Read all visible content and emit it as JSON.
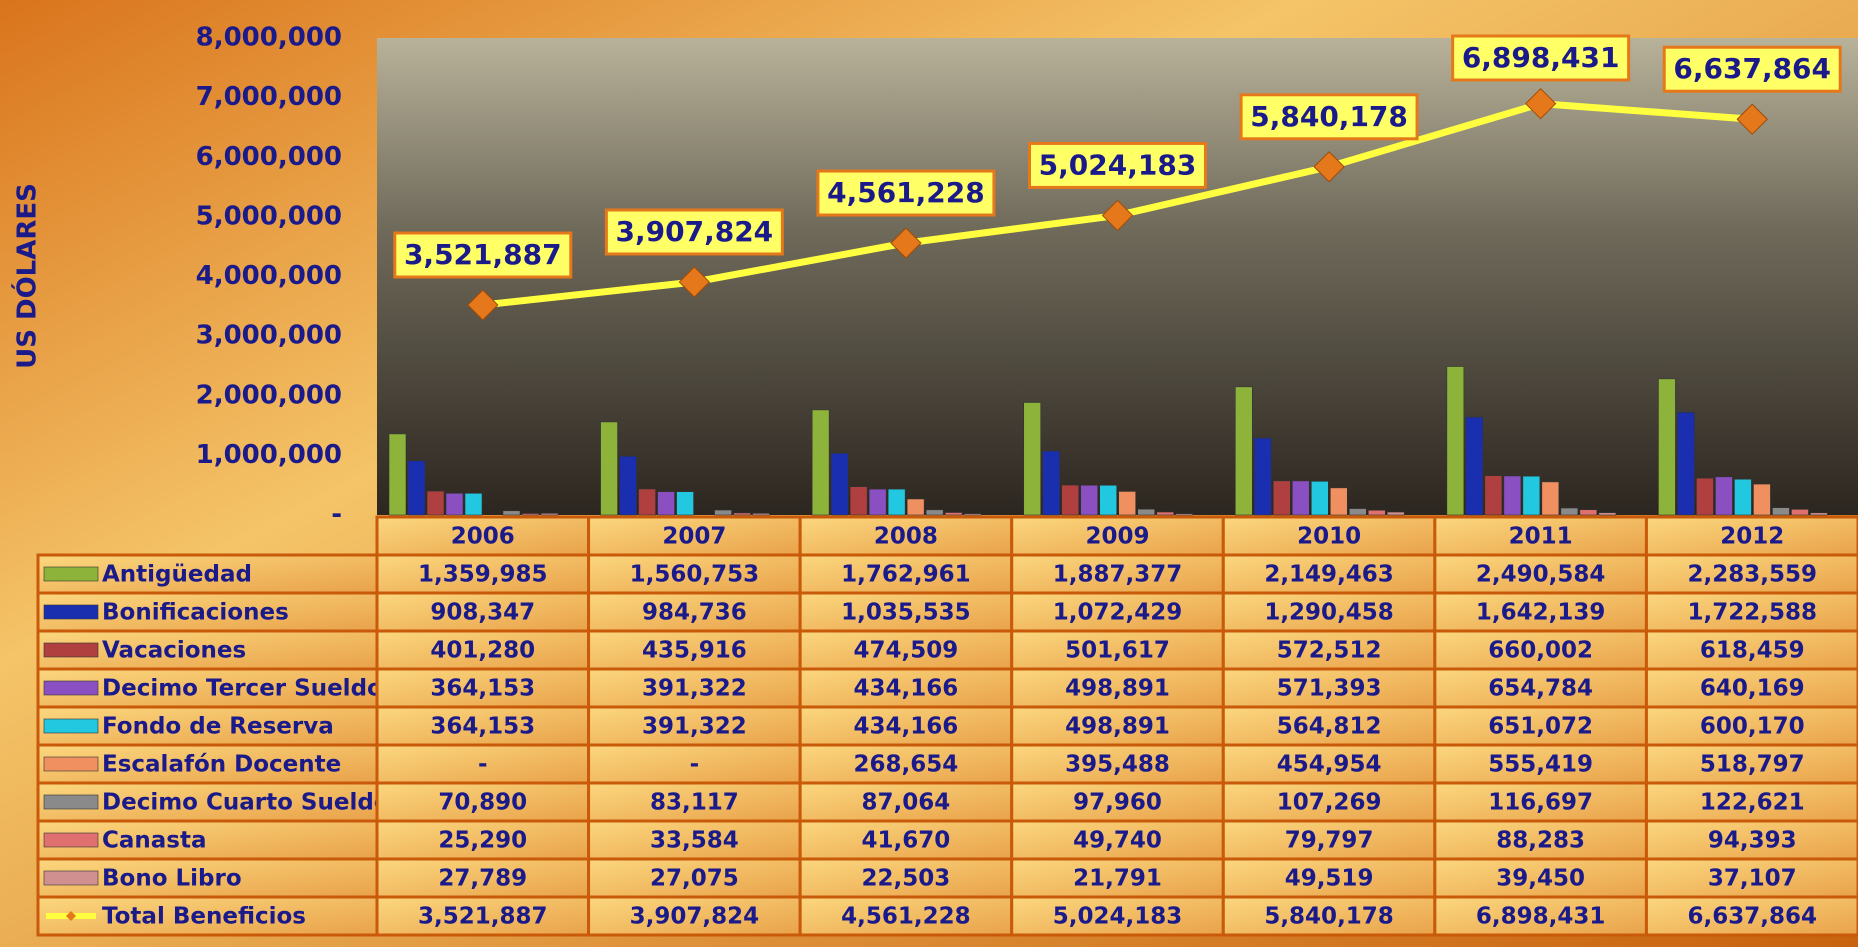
{
  "chart_data": {
    "type": "bar",
    "y_label": "US DÓLARES",
    "categories": [
      "2006",
      "2007",
      "2008",
      "2009",
      "2010",
      "2011",
      "2012"
    ],
    "ylim": [
      0,
      8000000
    ],
    "yticks": [
      {
        "value": 0,
        "label": "-"
      },
      {
        "value": 1000000,
        "label": "1,000,000"
      },
      {
        "value": 2000000,
        "label": "2,000,000"
      },
      {
        "value": 3000000,
        "label": "3,000,000"
      },
      {
        "value": 4000000,
        "label": "4,000,000"
      },
      {
        "value": 5000000,
        "label": "5,000,000"
      },
      {
        "value": 6000000,
        "label": "6,000,000"
      },
      {
        "value": 7000000,
        "label": "7,000,000"
      },
      {
        "value": 8000000,
        "label": "8,000,000"
      }
    ],
    "series": [
      {
        "name": "Antigüedad",
        "color": "#8db33a",
        "values": [
          1359985,
          1560753,
          1762961,
          1887377,
          2149463,
          2490584,
          2283559
        ],
        "value_labels": [
          "1,359,985",
          "1,560,753",
          "1,762,961",
          "1,887,377",
          "2,149,463",
          "2,490,584",
          "2,283,559"
        ]
      },
      {
        "name": "Bonificaciones",
        "color": "#1a2fb0",
        "values": [
          908347,
          984736,
          1035535,
          1072429,
          1290458,
          1642139,
          1722588
        ],
        "value_labels": [
          "908,347",
          "984,736",
          "1,035,535",
          "1,072,429",
          "1,290,458",
          "1,642,139",
          "1,722,588"
        ]
      },
      {
        "name": "Vacaciones",
        "color": "#b04040",
        "values": [
          401280,
          435916,
          474509,
          501617,
          572512,
          660002,
          618459
        ],
        "value_labels": [
          "401,280",
          "435,916",
          "474,509",
          "501,617",
          "572,512",
          "660,002",
          "618,459"
        ]
      },
      {
        "name": "Decimo Tercer Sueldo",
        "color": "#8a4fc0",
        "values": [
          364153,
          391322,
          434166,
          498891,
          571393,
          654784,
          640169
        ],
        "value_labels": [
          "364,153",
          "391,322",
          "434,166",
          "498,891",
          "571,393",
          "654,784",
          "640,169"
        ]
      },
      {
        "name": "Fondo de Reserva",
        "color": "#22c8e0",
        "values": [
          364153,
          391322,
          434166,
          498891,
          564812,
          651072,
          600170
        ],
        "value_labels": [
          "364,153",
          "391,322",
          "434,166",
          "498,891",
          "564,812",
          "651,072",
          "600,170"
        ]
      },
      {
        "name": "Escalafón Docente",
        "color": "#f09060",
        "values": [
          0,
          0,
          268654,
          395488,
          454954,
          555419,
          518797
        ],
        "value_labels": [
          "-",
          "-",
          "268,654",
          "395,488",
          "454,954",
          "555,419",
          "518,797"
        ]
      },
      {
        "name": "Decimo Cuarto Sueldo",
        "color": "#8a8a8a",
        "values": [
          70890,
          83117,
          87064,
          97960,
          107269,
          116697,
          122621
        ],
        "value_labels": [
          "70,890",
          "83,117",
          "87,064",
          "97,960",
          "107,269",
          "116,697",
          "122,621"
        ]
      },
      {
        "name": "Canasta",
        "color": "#e07070",
        "values": [
          25290,
          33584,
          41670,
          49740,
          79797,
          88283,
          94393
        ],
        "value_labels": [
          "25,290",
          "33,584",
          "41,670",
          "49,740",
          "79,797",
          "88,283",
          "94,393"
        ]
      },
      {
        "name": "Bono Libro",
        "color": "#d09090",
        "values": [
          27789,
          27075,
          22503,
          21791,
          49519,
          39450,
          37107
        ],
        "value_labels": [
          "27,789",
          "27,075",
          "22,503",
          "21,791",
          "49,519",
          "39,450",
          "37,107"
        ]
      },
      {
        "name": "Total Beneficios",
        "type": "line",
        "color": "#ffff40",
        "values": [
          3521887,
          3907824,
          4561228,
          5024183,
          5840178,
          6898431,
          6637864
        ],
        "value_labels": [
          "3,521,887",
          "3,907,824",
          "4,561,228",
          "5,024,183",
          "5,840,178",
          "6,898,431",
          "6,637,864"
        ]
      }
    ]
  }
}
